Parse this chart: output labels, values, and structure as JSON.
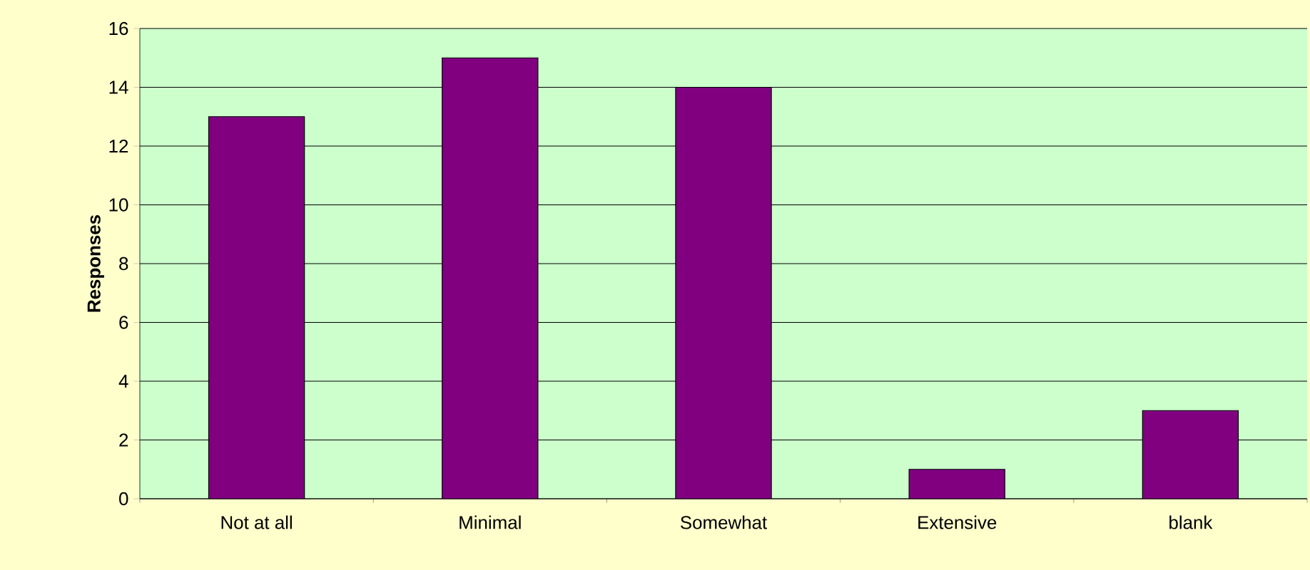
{
  "chart_data": {
    "type": "bar",
    "ylabel": "Responses",
    "categories": [
      "Not at all",
      "Minimal",
      "Somewhat",
      "Extensive",
      "blank"
    ],
    "values": [
      13,
      15,
      14,
      1,
      3
    ],
    "color": "#800080",
    "ylim": [
      0,
      16
    ],
    "yticks": [
      0,
      2,
      4,
      6,
      8,
      10,
      12,
      14,
      16
    ],
    "grid": "y"
  }
}
